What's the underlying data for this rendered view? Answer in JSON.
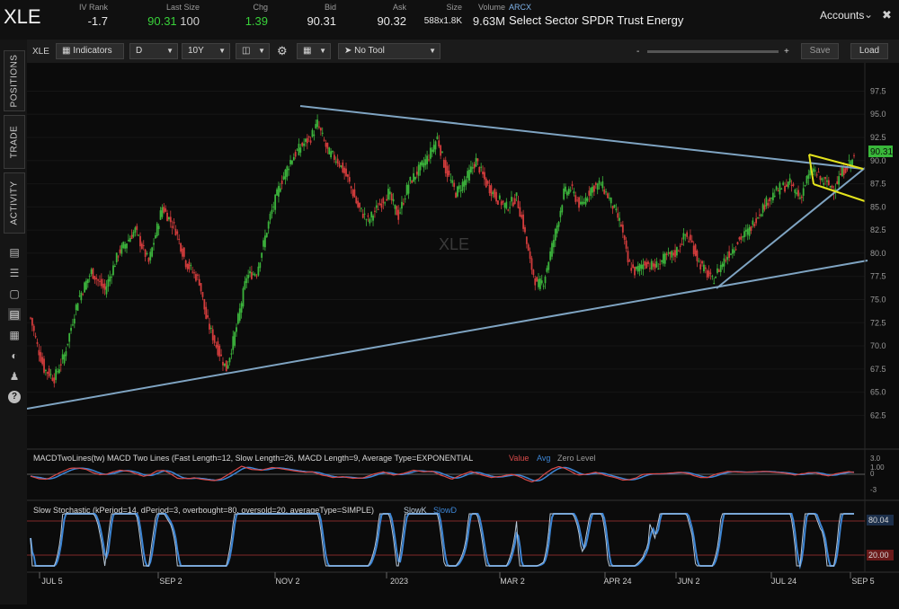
{
  "header": {
    "symbol": "XLE",
    "iv_rank_label": "IV Rank",
    "iv_rank": "-1.7",
    "last_size_label": "Last Size",
    "last": "90.31",
    "size": "100",
    "chg_label": "Chg",
    "chg": "1.39",
    "bid_label": "Bid",
    "bid": "90.31",
    "ask_label": "Ask",
    "ask": "90.32",
    "size_label": "Size",
    "size_val": "588x1.8K",
    "volume_label": "Volume",
    "volume": "9.63M",
    "exchange": "ARCX",
    "description": "Select Sector SPDR Trust Energy",
    "accounts": "Accounts"
  },
  "sidebar": {
    "tabs": [
      "POSITIONS",
      "TRADE",
      "ACTIVITY"
    ],
    "icons": [
      "notes-icon",
      "list-icon",
      "monitor-icon",
      "chart-icon",
      "grid-icon",
      "gauge-icon",
      "people-icon",
      "help-icon"
    ]
  },
  "toolbar": {
    "symbol": "XLE",
    "indicators": "Indicators",
    "aggregation": "D",
    "timeframe": "10Y",
    "tool": "No Tool",
    "zoom_minus": "-",
    "zoom_plus": "+",
    "save": "Save",
    "load": "Load"
  },
  "chart_data": {
    "type": "candlestick",
    "watermark": "XLE",
    "price_axis": [
      "97.5",
      "95.0",
      "92.5",
      "90.0",
      "87.5",
      "85.0",
      "82.5",
      "80.0",
      "77.5",
      "75.0",
      "72.5",
      "70.0",
      "67.5",
      "65.0",
      "62.5"
    ],
    "ylim": [
      60.5,
      99
    ],
    "last_price_tag": "90.31",
    "x_labels": [
      "JUL 5",
      "SEP 2",
      "NOV 2",
      "2023",
      "MAR 2",
      "APR 24",
      "JUN 2",
      "JUL 24",
      "SEP 5"
    ],
    "pivots": [
      [
        0,
        73.0
      ],
      [
        4,
        70.0
      ],
      [
        8,
        67.5
      ],
      [
        14,
        66.5
      ],
      [
        20,
        69.0
      ],
      [
        28,
        75.0
      ],
      [
        36,
        78.0
      ],
      [
        44,
        76.0
      ],
      [
        52,
        80.0
      ],
      [
        62,
        82.5
      ],
      [
        70,
        79.0
      ],
      [
        78,
        85.0
      ],
      [
        86,
        82.5
      ],
      [
        92,
        79.0
      ],
      [
        100,
        77.0
      ],
      [
        104,
        73.0
      ],
      [
        110,
        70.0
      ],
      [
        116,
        67.5
      ],
      [
        122,
        72.0
      ],
      [
        128,
        77.5
      ],
      [
        134,
        78.0
      ],
      [
        142,
        84.0
      ],
      [
        148,
        87.5
      ],
      [
        154,
        90.0
      ],
      [
        160,
        91.5
      ],
      [
        166,
        92.5
      ],
      [
        170,
        94.0
      ],
      [
        176,
        91.0
      ],
      [
        182,
        90.0
      ],
      [
        188,
        88.0
      ],
      [
        194,
        85.0
      ],
      [
        200,
        83.5
      ],
      [
        206,
        85.0
      ],
      [
        212,
        86.5
      ],
      [
        218,
        84.0
      ],
      [
        224,
        87.5
      ],
      [
        230,
        89.0
      ],
      [
        236,
        90.5
      ],
      [
        241,
        92.5
      ],
      [
        246,
        89.0
      ],
      [
        252,
        86.5
      ],
      [
        258,
        88.0
      ],
      [
        264,
        90.0
      ],
      [
        270,
        87.5
      ],
      [
        276,
        86.0
      ],
      [
        282,
        85.0
      ],
      [
        288,
        86.0
      ],
      [
        292,
        83.0
      ],
      [
        296,
        79.0
      ],
      [
        300,
        76.5
      ],
      [
        304,
        77.0
      ],
      [
        308,
        80.0
      ],
      [
        312,
        83.0
      ],
      [
        316,
        86.5
      ],
      [
        320,
        87.0
      ],
      [
        326,
        85.0
      ],
      [
        332,
        87.0
      ],
      [
        338,
        87.5
      ],
      [
        344,
        85.5
      ],
      [
        350,
        83.0
      ],
      [
        354,
        79.0
      ],
      [
        358,
        78.0
      ],
      [
        364,
        79.0
      ],
      [
        370,
        78.5
      ],
      [
        376,
        79.5
      ],
      [
        382,
        80.0
      ],
      [
        388,
        82.0
      ],
      [
        392,
        81.0
      ],
      [
        396,
        79.0
      ],
      [
        400,
        78.0
      ],
      [
        404,
        77.0
      ],
      [
        410,
        79.0
      ],
      [
        416,
        80.5
      ],
      [
        420,
        81.5
      ],
      [
        426,
        82.5
      ],
      [
        432,
        84.5
      ],
      [
        438,
        86.0
      ],
      [
        444,
        87.0
      ],
      [
        450,
        87.5
      ],
      [
        456,
        86.0
      ],
      [
        460,
        88.0
      ],
      [
        464,
        89.0
      ],
      [
        468,
        88.0
      ],
      [
        472,
        87.5
      ],
      [
        476,
        87.0
      ],
      [
        480,
        88.5
      ],
      [
        484,
        89.5
      ],
      [
        488,
        90.3
      ]
    ],
    "trendlines": {
      "upper": [
        [
          334,
          118
        ],
        [
          960,
          188
        ]
      ],
      "lower": [
        [
          30,
          455
        ],
        [
          965,
          290
        ]
      ],
      "rising": [
        [
          797,
          321
        ],
        [
          962,
          187
        ]
      ],
      "flag_top": [
        [
          900,
          172
        ],
        [
          960,
          188
        ]
      ],
      "flag_bottom": [
        [
          905,
          205
        ],
        [
          962,
          224
        ]
      ]
    },
    "macd": {
      "title": "MACDTwoLines(tw) MACD Two Lines (Fast Length=12, Slow Length=26, MACD Length=9, Average Type=EXPONENTIAL",
      "value_label": "Value",
      "avg_label": "Avg",
      "zero_label": "Zero Level",
      "axis": [
        "3.0",
        "1.00",
        "0",
        "-3"
      ]
    },
    "stochastic": {
      "title": "Slow Stochastic (kPeriod=14, dPeriod=3, overbought=80, oversold=20, averageType=SIMPLE)",
      "k_label": "SlowK",
      "d_label": "SlowD",
      "axis": [
        "80.04",
        "20.00"
      ]
    },
    "colors": {
      "up": "#3cb43c",
      "down": "#d23c3c",
      "trend": "#7fa4c2",
      "flag": "#e3e31c",
      "macd_value": "#d94a4a",
      "macd_avg": "#3d86d6",
      "stoch_k": "#b8c8d8",
      "stoch_d": "#3d86d6"
    }
  }
}
